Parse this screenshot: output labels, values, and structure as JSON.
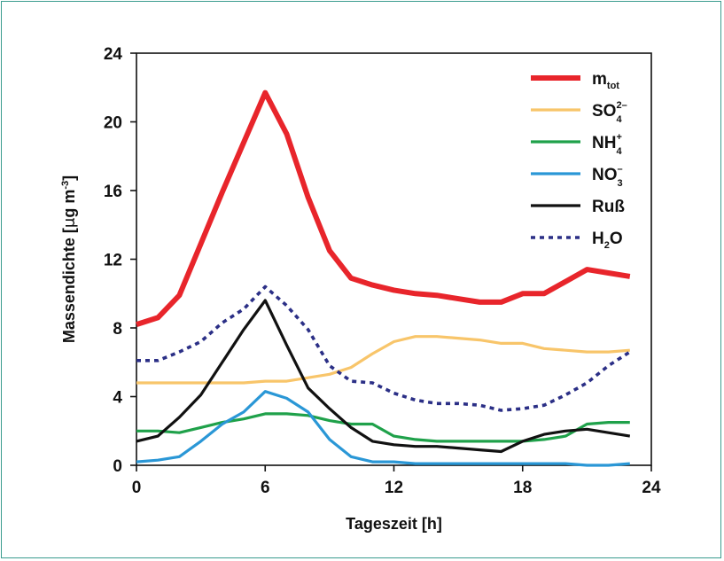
{
  "chart_data": {
    "type": "line",
    "xlabel": "Tageszeit [h]",
    "ylabel_parts": [
      "Massendichte [",
      "μ",
      "g m",
      "-3",
      "]"
    ],
    "xlim": [
      0,
      24
    ],
    "ylim": [
      0,
      24
    ],
    "xticks": [
      "0",
      "6",
      "12",
      "18",
      "24"
    ],
    "yticks": [
      "0",
      "4",
      "8",
      "12",
      "16",
      "20",
      "24"
    ],
    "grid": false,
    "legend_position": "top-right",
    "series": [
      {
        "id": "mtot",
        "color": "#e8252b",
        "style": "solid",
        "weight": "thick",
        "legend": {
          "main": "m",
          "sub": "tot",
          "sup": ""
        },
        "x": [
          0,
          1,
          2,
          3,
          4,
          5,
          6,
          7,
          8,
          9,
          10,
          11,
          12,
          13,
          14,
          15,
          16,
          17,
          18,
          19,
          20,
          21,
          22,
          23
        ],
        "y": [
          8.2,
          8.6,
          9.9,
          12.9,
          15.9,
          18.8,
          21.7,
          19.3,
          15.6,
          12.5,
          10.9,
          10.5,
          10.2,
          10.0,
          9.9,
          9.7,
          9.5,
          9.5,
          10.0,
          10.0,
          10.7,
          11.4,
          11.2,
          11.0
        ]
      },
      {
        "id": "so4",
        "color": "#f8c56a",
        "style": "solid",
        "weight": "normal",
        "legend": {
          "main": "SO",
          "sub": "4",
          "sup": "2–"
        },
        "x": [
          0,
          1,
          2,
          3,
          4,
          5,
          6,
          7,
          8,
          9,
          10,
          11,
          12,
          13,
          14,
          15,
          16,
          17,
          18,
          19,
          20,
          21,
          22,
          23
        ],
        "y": [
          4.8,
          4.8,
          4.8,
          4.8,
          4.8,
          4.8,
          4.9,
          4.9,
          5.1,
          5.3,
          5.7,
          6.5,
          7.2,
          7.5,
          7.5,
          7.4,
          7.3,
          7.1,
          7.1,
          6.8,
          6.7,
          6.6,
          6.6,
          6.7
        ]
      },
      {
        "id": "nh4",
        "color": "#1fa14a",
        "style": "solid",
        "weight": "normal",
        "legend": {
          "main": "NH",
          "sub": "4",
          "sup": "+"
        },
        "x": [
          0,
          1,
          2,
          3,
          4,
          5,
          6,
          7,
          8,
          9,
          10,
          11,
          12,
          13,
          14,
          15,
          16,
          17,
          18,
          19,
          20,
          21,
          22,
          23
        ],
        "y": [
          2.0,
          2.0,
          1.9,
          2.2,
          2.5,
          2.7,
          3.0,
          3.0,
          2.9,
          2.6,
          2.4,
          2.4,
          1.7,
          1.5,
          1.4,
          1.4,
          1.4,
          1.4,
          1.4,
          1.5,
          1.7,
          2.4,
          2.5,
          2.5
        ]
      },
      {
        "id": "no3",
        "color": "#2a97d6",
        "style": "solid",
        "weight": "normal",
        "legend": {
          "main": "NO",
          "sub": "3",
          "sup": "–"
        },
        "x": [
          0,
          1,
          2,
          3,
          4,
          5,
          6,
          7,
          8,
          9,
          10,
          11,
          12,
          13,
          14,
          15,
          16,
          17,
          18,
          19,
          20,
          21,
          22,
          23
        ],
        "y": [
          0.2,
          0.3,
          0.5,
          1.4,
          2.4,
          3.1,
          4.3,
          3.9,
          3.1,
          1.5,
          0.5,
          0.2,
          0.2,
          0.1,
          0.1,
          0.1,
          0.1,
          0.1,
          0.1,
          0.1,
          0.1,
          0.0,
          0.0,
          0.1
        ]
      },
      {
        "id": "russ",
        "color": "#111111",
        "style": "solid",
        "weight": "normal",
        "legend": {
          "main": "Ruß",
          "sub": "",
          "sup": ""
        },
        "x": [
          0,
          1,
          2,
          3,
          4,
          5,
          6,
          7,
          8,
          9,
          10,
          11,
          12,
          13,
          14,
          15,
          16,
          17,
          18,
          19,
          20,
          21,
          22,
          23
        ],
        "y": [
          1.4,
          1.7,
          2.8,
          4.1,
          6.0,
          7.9,
          9.6,
          7.0,
          4.5,
          3.3,
          2.2,
          1.4,
          1.2,
          1.1,
          1.1,
          1.0,
          0.9,
          0.8,
          1.4,
          1.8,
          2.0,
          2.1,
          1.9,
          1.7
        ]
      },
      {
        "id": "h2o",
        "color": "#2b2f86",
        "style": "dotted",
        "weight": "normal",
        "legend": {
          "main": "H",
          "sub": "2",
          "sup": "",
          "after": "O"
        },
        "x": [
          0,
          1,
          2,
          3,
          4,
          5,
          6,
          7,
          8,
          9,
          10,
          11,
          12,
          13,
          14,
          15,
          16,
          17,
          18,
          19,
          20,
          21,
          22,
          23
        ],
        "y": [
          6.1,
          6.1,
          6.6,
          7.2,
          8.3,
          9.1,
          10.4,
          9.3,
          7.9,
          5.8,
          4.9,
          4.8,
          4.2,
          3.8,
          3.6,
          3.6,
          3.5,
          3.2,
          3.3,
          3.5,
          4.1,
          4.8,
          5.8,
          6.6
        ]
      }
    ]
  }
}
